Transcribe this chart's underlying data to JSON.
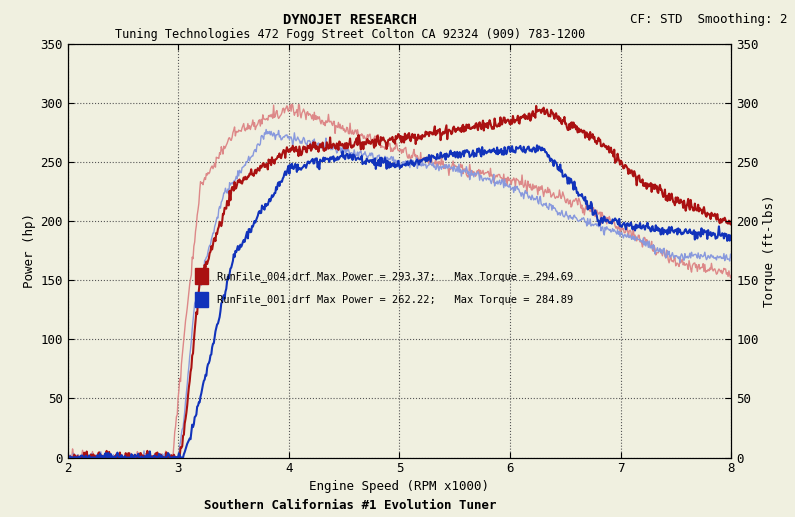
{
  "title1": "DYNOJET RESEARCH",
  "title1_right": "CF: STD  Smoothing: 2",
  "title2": "Tuning Technologies 472 Fogg Street Colton CA 92324 (909) 783-1200",
  "xlabel": "Engine Speed (RPM x1000)",
  "ylabel_left": "Power (hp)",
  "ylabel_right": "Torque (ft-lbs)",
  "footer": "Southern Californias #1 Evolution Tuner",
  "xmin": 2,
  "xmax": 8,
  "ymin": 0,
  "ymax": 350,
  "xticks": [
    2,
    3,
    4,
    5,
    6,
    7,
    8
  ],
  "yticks": [
    0,
    50,
    100,
    150,
    200,
    250,
    300,
    350
  ],
  "color_004": "#aa1111",
  "color_001": "#1133bb",
  "color_004_torque": "#dd8888",
  "color_001_torque": "#8899dd",
  "bg_color": "#f0f0e0",
  "grid_color": "#555555"
}
